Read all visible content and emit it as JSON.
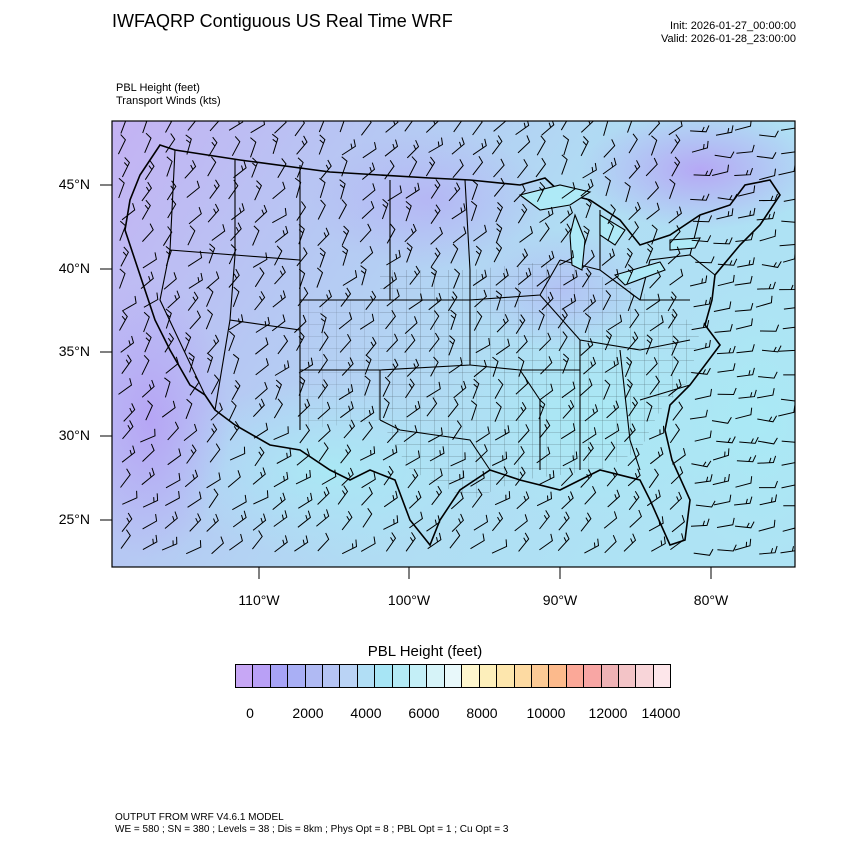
{
  "header": {
    "title": "IWFAQRP Contiguous US Real Time WRF",
    "init": "Init: 2026-01-27_00:00:00",
    "valid": "Valid: 2026-01-28_23:00:00"
  },
  "variables": {
    "line1": "PBL Height   (feet)",
    "line2": "Transport Winds   (kts)"
  },
  "map": {
    "lat_labels": [
      "45°N",
      "40°N",
      "35°N",
      "30°N",
      "25°N"
    ],
    "lon_labels": [
      "110°W",
      "100°W",
      "90°W",
      "80°W"
    ],
    "field_colors": [
      "#c7b4f2",
      "#b7c6f3",
      "#aee2f2",
      "#c8d4f4"
    ],
    "boundary_color": "#000000"
  },
  "colorbar": {
    "title": "PBL Height  (feet)",
    "labels": [
      "0",
      "2000",
      "4000",
      "6000",
      "8000",
      "10000",
      "12000",
      "14000"
    ],
    "colors": [
      "#c7a7f5",
      "#b9a0f6",
      "#a7a3f6",
      "#a9aff5",
      "#b0baf3",
      "#b5c4f4",
      "#bad3f5",
      "#b1def5",
      "#a7e5f5",
      "#b3eaf5",
      "#c4eff7",
      "#d6f3f8",
      "#e8f8fa",
      "#fef6cd",
      "#fdefbb",
      "#fde6ad",
      "#fddaa2",
      "#fcca95",
      "#fcba8c",
      "#fba898",
      "#f8a6a4",
      "#efb2b5",
      "#f3c4c7",
      "#f8d5d9",
      "#fde6ea"
    ]
  },
  "footer": {
    "line1": "OUTPUT FROM WRF V4.6.1 MODEL",
    "line2": "WE = 580 ; SN = 380 ; Levels = 38 ; Dis = 8km ; Phys Opt = 8 ; PBL Opt = 1 ; Cu Opt = 3"
  }
}
